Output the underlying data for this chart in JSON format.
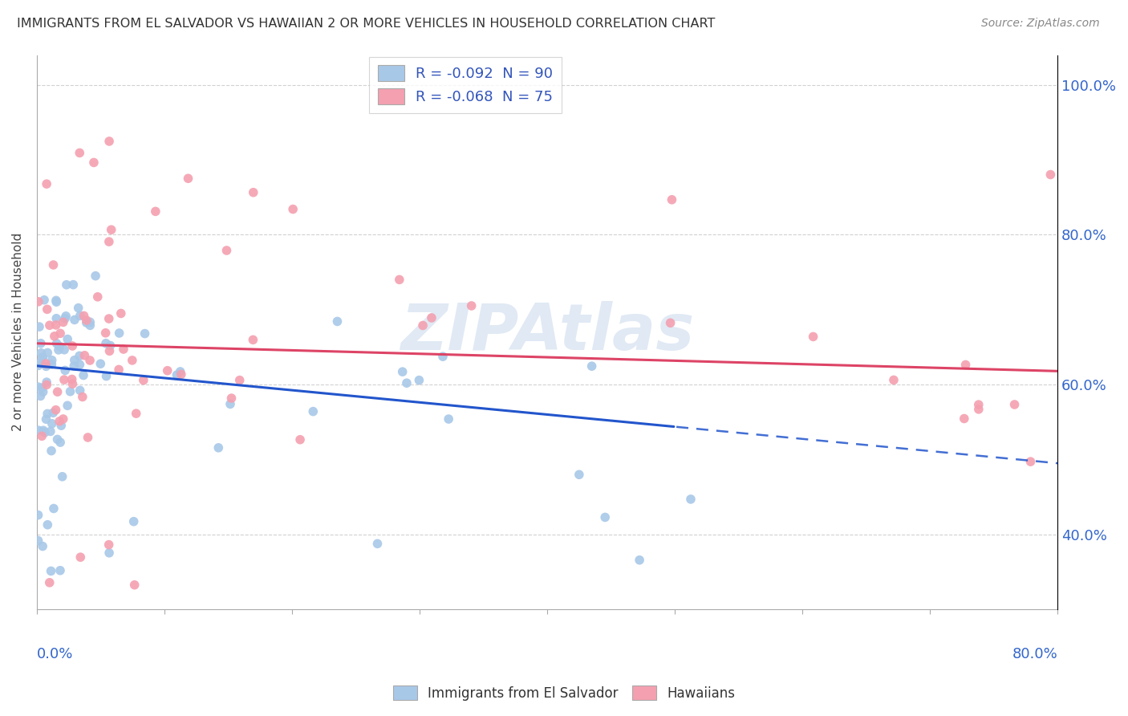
{
  "title": "IMMIGRANTS FROM EL SALVADOR VS HAWAIIAN 2 OR MORE VEHICLES IN HOUSEHOLD CORRELATION CHART",
  "source": "Source: ZipAtlas.com",
  "ylabel": "2 or more Vehicles in Household",
  "xlim": [
    0.0,
    0.8
  ],
  "ylim": [
    0.3,
    1.04
  ],
  "yticks": [
    0.4,
    0.6,
    0.8,
    1.0
  ],
  "ytick_labels": [
    "40.0%",
    "60.0%",
    "80.0%",
    "100.0%"
  ],
  "series1_label": "Immigrants from El Salvador",
  "series2_label": "Hawaiians",
  "series1_color": "#a8c8e8",
  "series2_color": "#f4a0b0",
  "trendline1_color": "#2255cc",
  "trendline2_color": "#dd4466",
  "watermark": "ZIPAtlas",
  "R1": -0.092,
  "N1": 90,
  "R2": -0.068,
  "N2": 75,
  "trendline1_x0": 0.0,
  "trendline1_y0": 0.625,
  "trendline1_x1": 0.8,
  "trendline1_y1": 0.495,
  "trendline1_solid_end": 0.5,
  "trendline2_x0": 0.0,
  "trendline2_y0": 0.655,
  "trendline2_x1": 0.8,
  "trendline2_y1": 0.618,
  "grid_color": "#cccccc",
  "background_color": "#ffffff"
}
